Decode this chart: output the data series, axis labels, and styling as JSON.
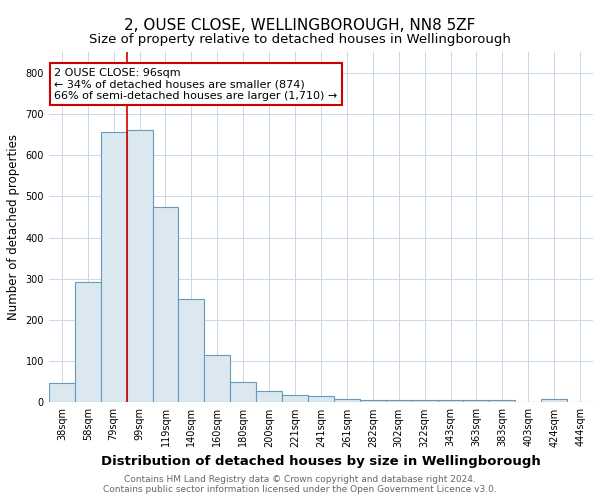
{
  "title": "2, OUSE CLOSE, WELLINGBOROUGH, NN8 5ZF",
  "subtitle": "Size of property relative to detached houses in Wellingborough",
  "xlabel": "Distribution of detached houses by size in Wellingborough",
  "ylabel": "Number of detached properties",
  "categories": [
    "38sqm",
    "58sqm",
    "79sqm",
    "99sqm",
    "119sqm",
    "140sqm",
    "160sqm",
    "180sqm",
    "200sqm",
    "221sqm",
    "241sqm",
    "261sqm",
    "282sqm",
    "302sqm",
    "322sqm",
    "343sqm",
    "363sqm",
    "383sqm",
    "403sqm",
    "424sqm",
    "444sqm"
  ],
  "values": [
    48,
    293,
    655,
    660,
    475,
    250,
    115,
    50,
    27,
    18,
    15,
    8,
    7,
    6,
    6,
    6,
    5,
    5,
    1,
    8,
    1
  ],
  "bar_color": "#dce8f0",
  "bar_edge_color": "#6699bb",
  "vline_color": "#cc0000",
  "annotation_text_line1": "2 OUSE CLOSE: 96sqm",
  "annotation_text_line2": "← 34% of detached houses are smaller (874)",
  "annotation_text_line3": "66% of semi-detached houses are larger (1,710) →",
  "annotation_box_color": "#ffffff",
  "annotation_box_edge_color": "#cc0000",
  "ylim": [
    0,
    850
  ],
  "yticks": [
    0,
    100,
    200,
    300,
    400,
    500,
    600,
    700,
    800
  ],
  "footer_line1": "Contains HM Land Registry data © Crown copyright and database right 2024.",
  "footer_line2": "Contains public sector information licensed under the Open Government Licence v3.0.",
  "bg_color": "#ffffff",
  "grid_color": "#c8d8e8",
  "title_fontsize": 11,
  "subtitle_fontsize": 9.5,
  "xlabel_fontsize": 9.5,
  "ylabel_fontsize": 8.5,
  "tick_fontsize": 7,
  "annot_fontsize": 8,
  "footer_fontsize": 6.5,
  "footer_color": "#666666"
}
